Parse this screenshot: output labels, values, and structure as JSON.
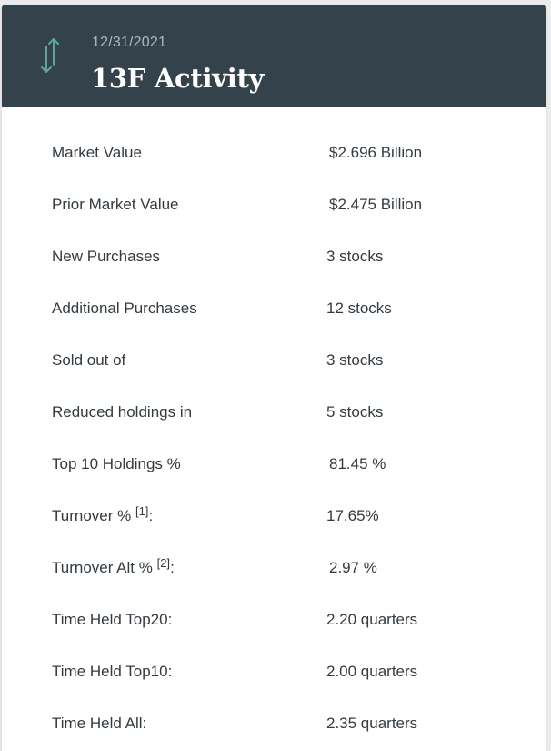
{
  "header": {
    "date": "12/31/2021",
    "title": "13F Activity",
    "icon": "up-down-arrows-icon",
    "icon_color": "#5fa69a",
    "background": "#34434b"
  },
  "rows": [
    {
      "label": "Market Value",
      "ref": "",
      "suffix": "",
      "value": "$2.696 Billion"
    },
    {
      "label": "Prior Market Value",
      "ref": "",
      "suffix": "",
      "value": "$2.475 Billion"
    },
    {
      "label": "New Purchases",
      "ref": "",
      "suffix": "",
      "value": "3 stocks"
    },
    {
      "label": "Additional Purchases",
      "ref": "",
      "suffix": "",
      "value": "12 stocks"
    },
    {
      "label": "Sold out of",
      "ref": "",
      "suffix": "",
      "value": "3 stocks"
    },
    {
      "label": "Reduced holdings in",
      "ref": "",
      "suffix": "",
      "value": "5 stocks"
    },
    {
      "label": "Top 10 Holdings %",
      "ref": "",
      "suffix": "",
      "value": "81.45 %"
    },
    {
      "label": "Turnover % ",
      "ref": "[1]",
      "suffix": ":",
      "value": "17.65%"
    },
    {
      "label": "Turnover Alt % ",
      "ref": "[2]",
      "suffix": ":",
      "value": "2.97 %"
    },
    {
      "label": "Time Held Top20:",
      "ref": "",
      "suffix": "",
      "value": "2.20 quarters"
    },
    {
      "label": "Time Held Top10:",
      "ref": "",
      "suffix": "",
      "value": "2.00 quarters"
    },
    {
      "label": "Time Held All:",
      "ref": "",
      "suffix": "",
      "value": "2.35 quarters"
    }
  ]
}
